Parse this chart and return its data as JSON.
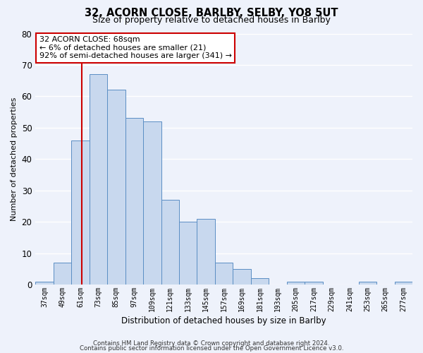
{
  "title1": "32, ACORN CLOSE, BARLBY, SELBY, YO8 5UT",
  "title2": "Size of property relative to detached houses in Barlby",
  "xlabel": "Distribution of detached houses by size in Barlby",
  "ylabel": "Number of detached properties",
  "bar_color": "#c8d8ee",
  "bar_edge_color": "#5b8ec4",
  "background_color": "#eef2fb",
  "grid_color": "#ffffff",
  "bin_labels": [
    "37sqm",
    "49sqm",
    "61sqm",
    "73sqm",
    "85sqm",
    "97sqm",
    "109sqm",
    "121sqm",
    "133sqm",
    "145sqm",
    "157sqm",
    "169sqm",
    "181sqm",
    "193sqm",
    "205sqm",
    "217sqm",
    "229sqm",
    "241sqm",
    "253sqm",
    "265sqm",
    "277sqm"
  ],
  "bin_edges": [
    37,
    49,
    61,
    73,
    85,
    97,
    109,
    121,
    133,
    145,
    157,
    169,
    181,
    193,
    205,
    217,
    229,
    241,
    253,
    265,
    277,
    289
  ],
  "counts": [
    1,
    7,
    46,
    67,
    62,
    53,
    52,
    27,
    20,
    21,
    7,
    5,
    2,
    0,
    1,
    1,
    0,
    0,
    1,
    0,
    1
  ],
  "vline_x": 68,
  "vline_color": "#cc0000",
  "annotation_title": "32 ACORN CLOSE: 68sqm",
  "annotation_line1": "← 6% of detached houses are smaller (21)",
  "annotation_line2": "92% of semi-detached houses are larger (341) →",
  "annotation_box_color": "#ffffff",
  "annotation_box_edge_color": "#cc0000",
  "ylim": [
    0,
    80
  ],
  "yticks": [
    0,
    10,
    20,
    30,
    40,
    50,
    60,
    70,
    80
  ],
  "footer1": "Contains HM Land Registry data © Crown copyright and database right 2024.",
  "footer2": "Contains public sector information licensed under the Open Government Licence v3.0."
}
